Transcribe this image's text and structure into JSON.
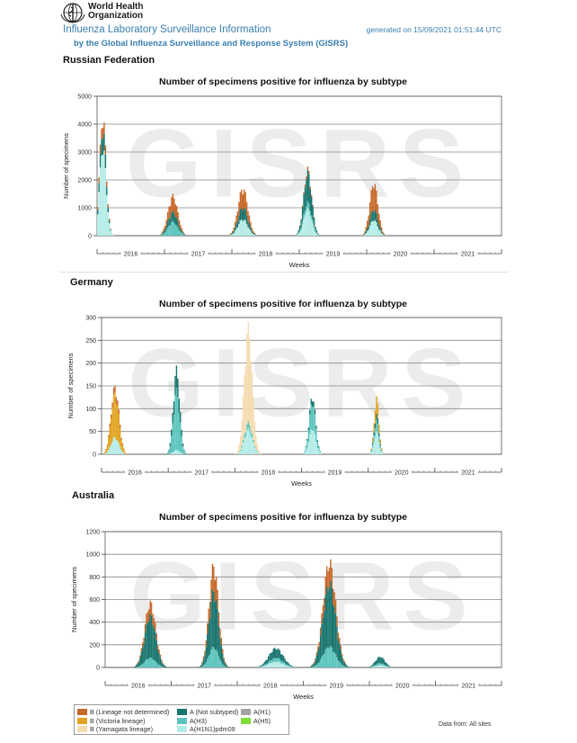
{
  "header": {
    "org_name": "World Health\nOrganization",
    "title": "Influenza Laboratory Surveillance Information",
    "subtitle": "by the Global Influenza Surveillance and Response System (GISRS)",
    "generated": "generated on 15/09/2021 01:51:44 UTC"
  },
  "watermark": "GISRS",
  "colors": {
    "b_not_determined": "#c8692a",
    "b_victoria": "#e2a420",
    "b_yamagata": "#f5dcb0",
    "a_not_subtyped": "#18756e",
    "a_h3": "#5cc4bd",
    "a_h1n1pdm09": "#b5ece8",
    "a_h1": "#a3a3a3",
    "a_h5": "#7fdc3a"
  },
  "legend": [
    {
      "label": "B (Lineage not determined)",
      "color_key": "b_not_determined"
    },
    {
      "label": "B (Victoria lineage)",
      "color_key": "b_victoria"
    },
    {
      "label": "B (Yamagata lineage)",
      "color_key": "b_yamagata"
    },
    {
      "label": "A (Not subtyped)",
      "color_key": "a_not_subtyped"
    },
    {
      "label": "A(H3)",
      "color_key": "a_h3"
    },
    {
      "label": "A(H1N1)pdm09",
      "color_key": "a_h1n1pdm09"
    },
    {
      "label": "A(H1)",
      "color_key": "a_h1"
    },
    {
      "label": "A(H5)",
      "color_key": "a_h5"
    }
  ],
  "data_from": "Data from: All sites",
  "chart_data": [
    {
      "type": "bar",
      "stacked": true,
      "country": "Russian Federation",
      "title": "Number of specimens positive for influenza by subtype",
      "xlabel": "Weeks",
      "ylabel": "Number of specimens",
      "ylim": [
        0,
        5000
      ],
      "yticks": [
        0,
        1000,
        2000,
        3000,
        4000,
        5000
      ],
      "years": [
        "2016",
        "2017",
        "2018",
        "2019",
        "2020",
        "2021"
      ],
      "peaks": [
        {
          "year": "2016",
          "week": 4,
          "width_weeks": 4,
          "total": 4500,
          "mix": {
            "a_h1n1pdm09": 0.75,
            "a_not_subtyped": 0.15,
            "b_not_determined": 0.1
          }
        },
        {
          "year": "2017",
          "week": 6,
          "width_weeks": 6,
          "total": 1500,
          "mix": {
            "a_h3": 0.35,
            "a_not_subtyped": 0.25,
            "b_not_determined": 0.4
          }
        },
        {
          "year": "2018",
          "week": 8,
          "width_weeks": 6,
          "total": 1800,
          "mix": {
            "a_h1n1pdm09": 0.35,
            "a_not_subtyped": 0.25,
            "b_not_determined": 0.4
          }
        },
        {
          "year": "2019",
          "week": 6,
          "width_weeks": 5,
          "total": 2500,
          "mix": {
            "a_h1n1pdm09": 0.4,
            "a_not_subtyped": 0.45,
            "a_h3": 0.1,
            "b_not_determined": 0.05
          }
        },
        {
          "year": "2020",
          "week": 5,
          "width_weeks": 5,
          "total": 2000,
          "mix": {
            "a_h1n1pdm09": 0.3,
            "a_not_subtyped": 0.2,
            "b_not_determined": 0.5
          }
        }
      ]
    },
    {
      "type": "bar",
      "stacked": true,
      "country": "Germany",
      "title": "Number of specimens positive for influenza by subtype",
      "xlabel": "Weeks",
      "ylabel": "Number of specimens",
      "ylim": [
        0,
        300
      ],
      "yticks": [
        0,
        50,
        100,
        150,
        200,
        250,
        300
      ],
      "years": [
        "2016",
        "2017",
        "2018",
        "2019",
        "2020",
        "2021"
      ],
      "peaks": [
        {
          "year": "2016",
          "week": 10,
          "width_weeks": 5,
          "total": 155,
          "mix": {
            "b_victoria": 0.65,
            "a_h1n1pdm09": 0.25,
            "b_not_determined": 0.1
          }
        },
        {
          "year": "2017",
          "week": 6,
          "width_weeks": 4,
          "total": 195,
          "mix": {
            "a_h3": 0.7,
            "a_not_subtyped": 0.25,
            "a_h1n1pdm09": 0.05
          }
        },
        {
          "year": "2018",
          "week": 10,
          "width_weeks": 5,
          "total": 290,
          "mix": {
            "b_yamagata": 0.75,
            "a_h1n1pdm09": 0.2,
            "a_h3": 0.05
          }
        },
        {
          "year": "2019",
          "week": 8,
          "width_weeks": 4,
          "total": 135,
          "mix": {
            "a_h3": 0.45,
            "a_h1n1pdm09": 0.45,
            "a_not_subtyped": 0.1
          }
        },
        {
          "year": "2020",
          "week": 6,
          "width_weeks": 3,
          "total": 130,
          "mix": {
            "a_h1n1pdm09": 0.4,
            "a_h3": 0.2,
            "a_not_subtyped": 0.1,
            "b_victoria": 0.3
          }
        }
      ]
    },
    {
      "type": "bar",
      "stacked": true,
      "country": "Australia",
      "title": "Number of specimens positive for influenza by subtype",
      "xlabel": "Weeks",
      "ylabel": "Number of specimens",
      "ylim": [
        0,
        1200
      ],
      "yticks": [
        0,
        200,
        400,
        600,
        800,
        1000,
        1200
      ],
      "years": [
        "2016",
        "2017",
        "2018",
        "2019",
        "2020",
        "2021"
      ],
      "peaks": [
        {
          "year": "2016",
          "week": 35,
          "width_weeks": 7,
          "total": 600,
          "mix": {
            "a_not_subtyped": 0.65,
            "a_h3": 0.15,
            "b_not_determined": 0.2
          }
        },
        {
          "year": "2017",
          "week": 33,
          "width_weeks": 6,
          "total": 950,
          "mix": {
            "a_not_subtyped": 0.55,
            "a_h3": 0.2,
            "b_not_determined": 0.25
          }
        },
        {
          "year": "2018",
          "week": 30,
          "width_weeks": 9,
          "total": 180,
          "mix": {
            "a_not_subtyped": 0.5,
            "a_h1n1pdm09": 0.3,
            "a_h3": 0.2
          }
        },
        {
          "year": "2019",
          "week": 20,
          "width_weeks": 8,
          "total": 980,
          "mix": {
            "a_not_subtyped": 0.6,
            "a_h3": 0.2,
            "b_not_determined": 0.2
          }
        },
        {
          "year": "2020",
          "week": 8,
          "width_weeks": 6,
          "total": 100,
          "mix": {
            "a_not_subtyped": 0.6,
            "a_h3": 0.2,
            "a_h1n1pdm09": 0.2
          }
        }
      ]
    }
  ]
}
